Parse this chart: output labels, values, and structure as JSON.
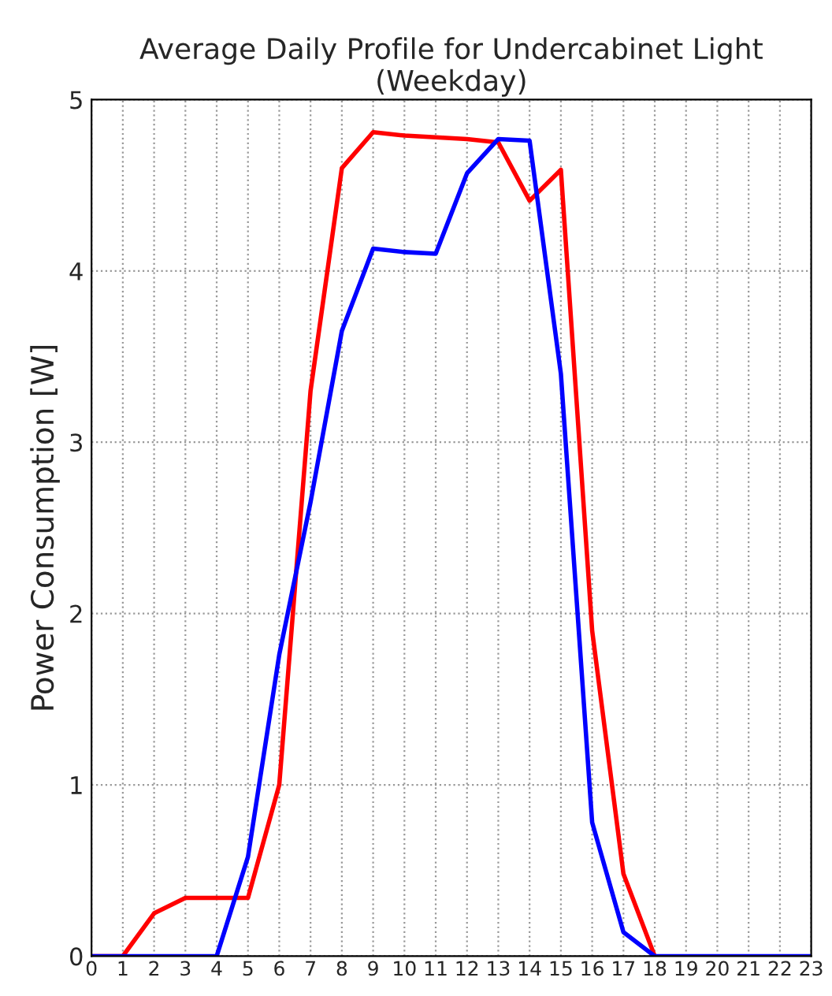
{
  "chart_data": {
    "type": "line",
    "title": "Average Daily Profile for Undercabinet Light (Weekday)",
    "ylabel": "Power Consumption [W]",
    "x": [
      0,
      1,
      2,
      3,
      4,
      5,
      6,
      7,
      8,
      9,
      10,
      11,
      12,
      13,
      14,
      15,
      16,
      17,
      18,
      19,
      20,
      21,
      22,
      23
    ],
    "series": [
      {
        "color": "#ff0000",
        "values": [
          0,
          0,
          0.25,
          0.34,
          0.34,
          0.34,
          1.0,
          3.3,
          4.6,
          4.81,
          4.79,
          4.78,
          4.77,
          4.75,
          4.41,
          4.59,
          1.9,
          0.48,
          0,
          null,
          null,
          null,
          null,
          null
        ]
      },
      {
        "color": "#0000ff",
        "values": [
          0,
          0,
          0,
          0,
          0,
          0.58,
          1.76,
          2.65,
          3.65,
          4.13,
          4.11,
          4.1,
          4.57,
          4.77,
          4.76,
          3.4,
          0.78,
          0.14,
          0,
          0,
          0,
          0,
          0,
          0
        ]
      }
    ],
    "xlim": [
      0,
      23
    ],
    "xticks": [
      0,
      1,
      2,
      3,
      4,
      5,
      6,
      7,
      8,
      9,
      10,
      11,
      12,
      13,
      14,
      15,
      16,
      17,
      18,
      19,
      20,
      21,
      22,
      23
    ],
    "ylim": [
      0,
      5
    ],
    "yticks": [
      0,
      1,
      2,
      3,
      4,
      5
    ],
    "grid": true,
    "line_style": "solid",
    "marker": "none"
  }
}
